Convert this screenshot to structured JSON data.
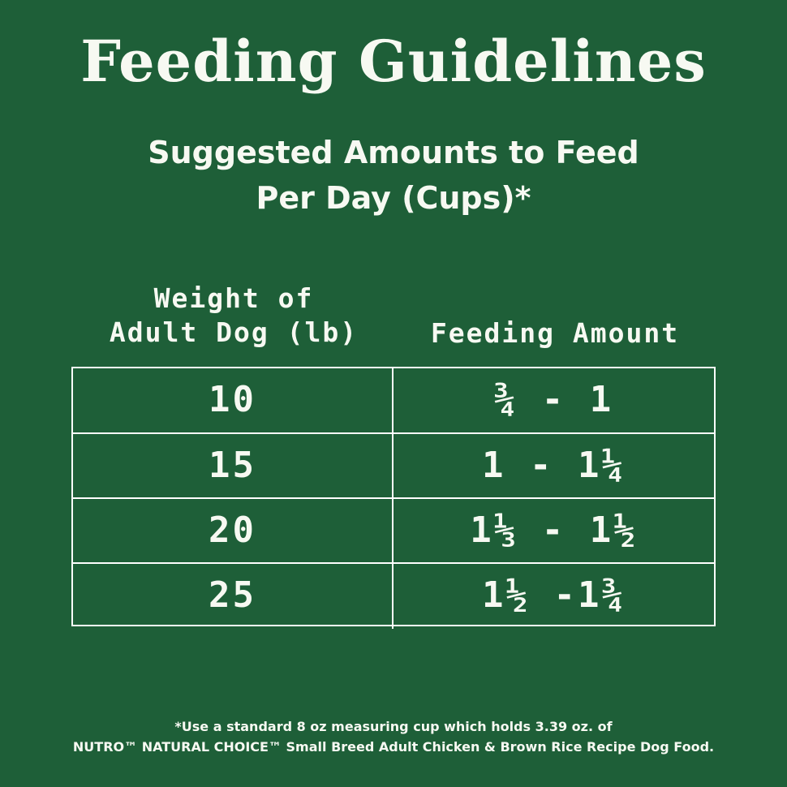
{
  "title": "Feeding Guidelines",
  "subtitle": {
    "line1": "Suggested Amounts to Feed",
    "line2": "Per Day (Cups)*"
  },
  "table": {
    "headers": {
      "weight_line1": "Weight of",
      "weight_line2": "Adult Dog (lb)",
      "amount": "Feeding Amount"
    },
    "rows": [
      {
        "weight": "10",
        "amount": "¾ - 1"
      },
      {
        "weight": "15",
        "amount": "1 - 1¼"
      },
      {
        "weight": "20",
        "amount": "1⅓ - 1½"
      },
      {
        "weight": "25",
        "amount": "1½ -1¾"
      }
    ]
  },
  "footnote": {
    "line1": "*Use a standard 8 oz measuring cup which holds 3.39 oz. of",
    "line2": "NUTRO™ NATURAL CHOICE™ Small Breed Adult Chicken & Brown Rice Recipe Dog Food."
  },
  "colors": {
    "background": "#1e5f38",
    "text": "#f7f9f2",
    "border": "#ffffff"
  }
}
